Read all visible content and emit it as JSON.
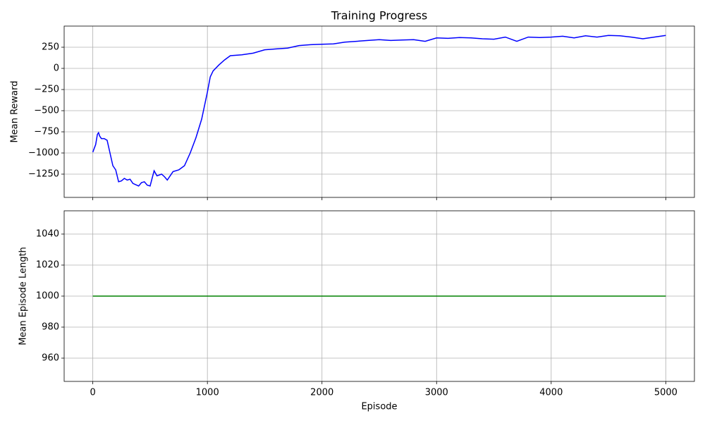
{
  "chart_data": [
    {
      "type": "line",
      "title": "Training Progress",
      "ylabel": "Mean Reward",
      "x": [
        0,
        25,
        40,
        50,
        60,
        75,
        100,
        125,
        150,
        175,
        200,
        225,
        250,
        275,
        300,
        325,
        350,
        400,
        425,
        450,
        475,
        500,
        535,
        560,
        600,
        625,
        650,
        700,
        750,
        800,
        850,
        900,
        950,
        1000,
        1025,
        1050,
        1100,
        1150,
        1200,
        1300,
        1400,
        1500,
        1600,
        1700,
        1800,
        1900,
        2000,
        2100,
        2200,
        2300,
        2400,
        2500,
        2600,
        2700,
        2800,
        2900,
        3000,
        3100,
        3200,
        3300,
        3400,
        3500,
        3600,
        3700,
        3800,
        3900,
        4000,
        4100,
        4200,
        4300,
        4400,
        4500,
        4600,
        4700,
        4800,
        4900,
        5000
      ],
      "series": [
        {
          "color": "#0000ff",
          "values": [
            -990,
            -900,
            -780,
            -760,
            -800,
            -830,
            -830,
            -850,
            -1000,
            -1150,
            -1200,
            -1340,
            -1330,
            -1300,
            -1320,
            -1310,
            -1360,
            -1390,
            -1350,
            -1340,
            -1380,
            -1390,
            -1210,
            -1270,
            -1250,
            -1280,
            -1320,
            -1220,
            -1200,
            -1150,
            -1000,
            -820,
            -600,
            -280,
            -100,
            -30,
            40,
            100,
            150,
            160,
            180,
            220,
            230,
            240,
            270,
            280,
            285,
            290,
            310,
            320,
            330,
            340,
            330,
            335,
            340,
            320,
            360,
            355,
            365,
            360,
            350,
            345,
            370,
            320,
            370,
            365,
            370,
            380,
            360,
            385,
            370,
            390,
            385,
            370,
            350,
            370,
            390
          ]
        }
      ],
      "xlim": [
        -250,
        5250
      ],
      "xticks": [
        0,
        1000,
        2000,
        3000,
        4000,
        5000
      ],
      "ylim": [
        -1525,
        500
      ],
      "yticks": [
        {
          "value": -1250,
          "label": "−1250"
        },
        {
          "value": -1000,
          "label": "−1000"
        },
        {
          "value": -750,
          "label": "−750"
        },
        {
          "value": -500,
          "label": "−500"
        },
        {
          "value": -250,
          "label": "−250"
        },
        0,
        250
      ],
      "grid": true
    },
    {
      "type": "line",
      "ylabel": "Mean Episode Length",
      "xlabel": "Episode",
      "x": [
        0,
        5000
      ],
      "series": [
        {
          "color": "#008000",
          "values": [
            1000,
            1000
          ]
        }
      ],
      "xlim": [
        -250,
        5250
      ],
      "xticks": [
        0,
        1000,
        2000,
        3000,
        4000,
        5000
      ],
      "ylim": [
        945,
        1055
      ],
      "yticks": [
        960,
        980,
        1000,
        1020,
        1040
      ],
      "grid": true
    }
  ]
}
